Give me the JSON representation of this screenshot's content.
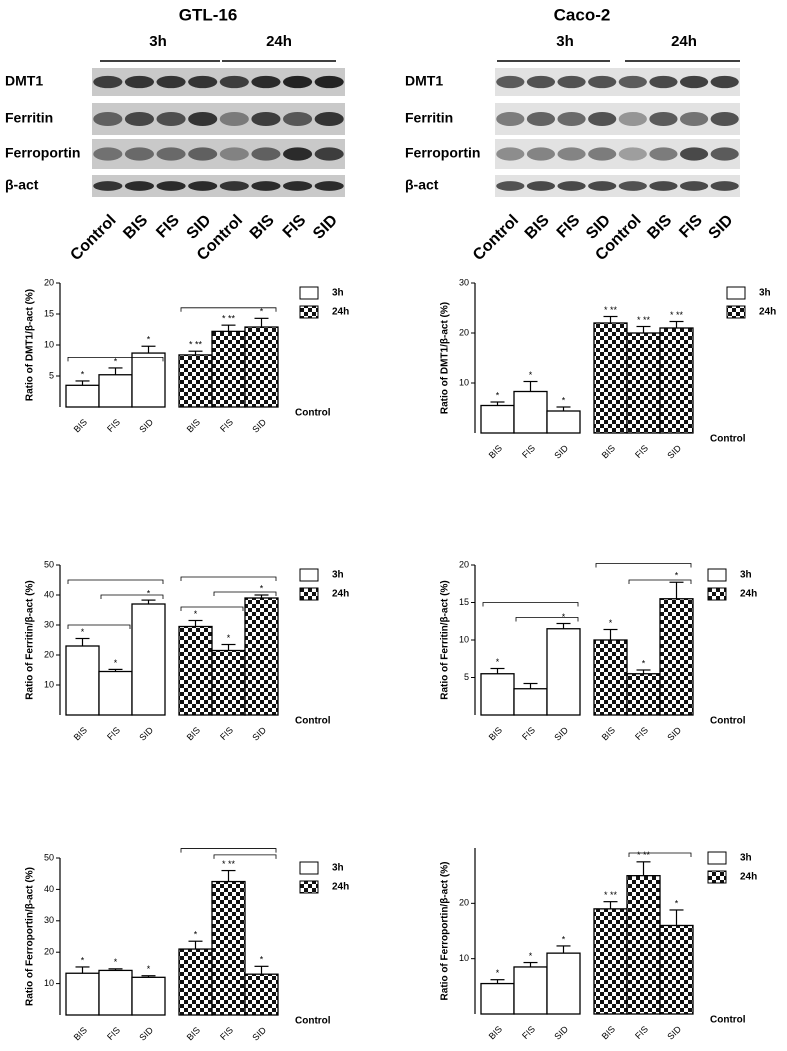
{
  "blots": [
    {
      "title": "GTL-16",
      "times": [
        "3h",
        "24h"
      ],
      "rows": [
        "DMT1",
        "Ferritin",
        "Ferroportin",
        "β-act"
      ],
      "lanes": [
        "Control",
        "BIS",
        "FIS",
        "SID",
        "Control",
        "BIS",
        "FIS",
        "SID"
      ]
    },
    {
      "title": "Caco-2",
      "times": [
        "3h",
        "24h"
      ],
      "rows": [
        "DMT1",
        "Ferritin",
        "Ferroportin",
        "β-act"
      ],
      "lanes": [
        "Control",
        "BIS",
        "FIS",
        "SID",
        "Control",
        "BIS",
        "FIS",
        "SID"
      ]
    }
  ],
  "chart_data": [
    {
      "type": "bar",
      "ylabel": "Ratio of DMT1/β-act (%)",
      "baseline_label": "Control",
      "categories": [
        "BIS",
        "FIS",
        "SID",
        "BIS",
        "FIS",
        "SID"
      ],
      "series": [
        {
          "name": "3h",
          "color": "#ffffff",
          "values": [
            3.5,
            5.2,
            8.7,
            null,
            null,
            null
          ],
          "errors": [
            0.7,
            1.1,
            1.1,
            null,
            null,
            null
          ]
        },
        {
          "name": "24h",
          "color": "checker",
          "values": [
            null,
            null,
            null,
            8.4,
            12.2,
            12.9
          ],
          "errors": [
            null,
            null,
            null,
            0.6,
            1.0,
            1.4
          ]
        }
      ],
      "significance": [
        "*",
        "*",
        "*",
        "* **",
        "* **",
        "*"
      ],
      "ylim": [
        0,
        20
      ],
      "yticks": [
        5,
        10,
        15,
        20
      ]
    },
    {
      "type": "bar",
      "ylabel": "Ratio of DMT1/β-act (%)",
      "baseline_label": "Control",
      "categories": [
        "BIS",
        "FIS",
        "SID",
        "BIS",
        "FIS",
        "SID"
      ],
      "series": [
        {
          "name": "3h",
          "color": "#ffffff",
          "values": [
            5.5,
            8.3,
            4.4,
            null,
            null,
            null
          ],
          "errors": [
            0.7,
            2.0,
            0.8,
            null,
            null,
            null
          ]
        },
        {
          "name": "24h",
          "color": "checker",
          "values": [
            null,
            null,
            null,
            22,
            20,
            21
          ],
          "errors": [
            null,
            null,
            null,
            1.3,
            1.3,
            1.3
          ]
        }
      ],
      "significance": [
        "*",
        "*",
        "*",
        "* **",
        "* **",
        "* **"
      ],
      "ylim": [
        0,
        30
      ],
      "yticks": [
        10,
        20,
        30
      ]
    },
    {
      "type": "bar",
      "ylabel": "Ratio of Ferritin/β-act (%)",
      "baseline_label": "Control",
      "categories": [
        "BIS",
        "FIS",
        "SID",
        "BIS",
        "FIS",
        "SID"
      ],
      "series": [
        {
          "name": "3h",
          "color": "#ffffff",
          "values": [
            23,
            14.5,
            37,
            null,
            null,
            null
          ],
          "errors": [
            2.5,
            0.7,
            1.3,
            null,
            null,
            null
          ]
        },
        {
          "name": "24h",
          "color": "checker",
          "values": [
            null,
            null,
            null,
            29.5,
            21.5,
            39
          ],
          "errors": [
            null,
            null,
            null,
            2,
            2,
            1
          ]
        }
      ],
      "significance": [
        "*",
        "*",
        "*",
        "*",
        "*",
        "*"
      ],
      "ylim": [
        0,
        50
      ],
      "yticks": [
        10,
        20,
        30,
        40,
        50
      ]
    },
    {
      "type": "bar",
      "ylabel": "Ratio of Ferritin/β-act (%)",
      "baseline_label": "Control",
      "categories": [
        "BIS",
        "FIS",
        "SID",
        "BIS",
        "FIS",
        "SID"
      ],
      "series": [
        {
          "name": "3h",
          "color": "#ffffff",
          "values": [
            5.5,
            3.5,
            11.5,
            null,
            null,
            null
          ],
          "errors": [
            0.7,
            0.7,
            0.7,
            null,
            null,
            null
          ]
        },
        {
          "name": "24h",
          "color": "checker",
          "values": [
            null,
            null,
            null,
            10,
            5.5,
            15.5
          ],
          "errors": [
            null,
            null,
            null,
            1.4,
            0.5,
            2.2
          ]
        }
      ],
      "significance": [
        "*",
        null,
        "*",
        "*",
        "*",
        "*"
      ],
      "ylim": [
        0,
        20
      ],
      "yticks": [
        5,
        10,
        15,
        20
      ]
    },
    {
      "type": "bar",
      "ylabel": "Ratio of Ferroportin/β-act (%)",
      "baseline_label": "Control",
      "categories": [
        "BIS",
        "FIS",
        "SID",
        "BIS",
        "FIS",
        "SID"
      ],
      "series": [
        {
          "name": "3h",
          "color": "#ffffff",
          "values": [
            13.3,
            14.2,
            12,
            null,
            null,
            null
          ],
          "errors": [
            2,
            0.5,
            0.5,
            null,
            null,
            null
          ]
        },
        {
          "name": "24h",
          "color": "checker",
          "values": [
            null,
            null,
            null,
            21,
            42.5,
            13
          ],
          "errors": [
            null,
            null,
            null,
            2.5,
            3.5,
            2.5
          ]
        }
      ],
      "significance": [
        "*",
        "*",
        "*",
        "*",
        "* **",
        "*"
      ],
      "ylim": [
        0,
        50
      ],
      "yticks": [
        10,
        20,
        30,
        40,
        50
      ]
    },
    {
      "type": "bar",
      "ylabel": "Ratio of Ferroportin/β-act (%)",
      "baseline_label": "Control",
      "categories": [
        "BIS",
        "FIS",
        "SID",
        "BIS",
        "FIS",
        "SID"
      ],
      "series": [
        {
          "name": "3h",
          "color": "#ffffff",
          "values": [
            5.5,
            8.5,
            11,
            null,
            null,
            null
          ],
          "errors": [
            0.7,
            0.8,
            1.3,
            null,
            null,
            null
          ]
        },
        {
          "name": "24h",
          "color": "checker",
          "values": [
            null,
            null,
            null,
            19,
            25,
            16
          ],
          "errors": [
            null,
            null,
            null,
            1.3,
            2.5,
            2.8
          ]
        }
      ],
      "significance": [
        "*",
        "*",
        "*",
        "* **",
        "* **",
        "*"
      ],
      "ylim": [
        0,
        30
      ],
      "yticks": [
        10,
        20
      ]
    }
  ]
}
